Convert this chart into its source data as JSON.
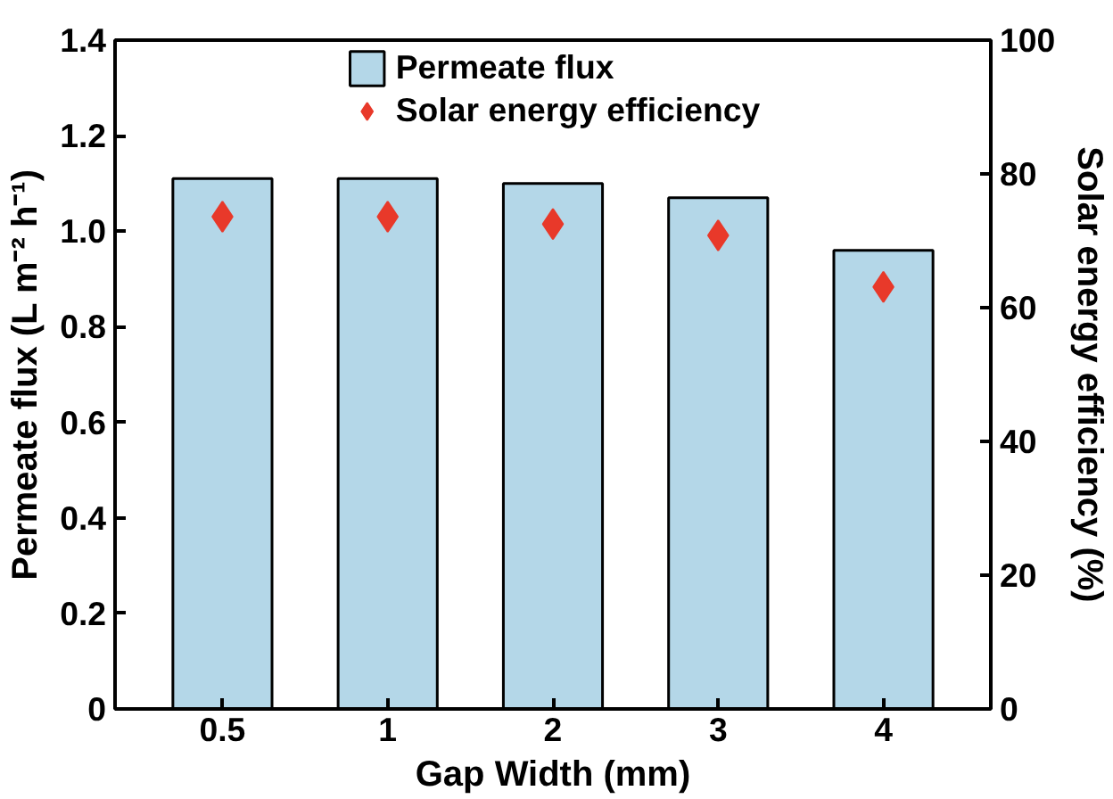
{
  "chart_data": {
    "type": "bar",
    "categories": [
      "0.5",
      "1",
      "2",
      "3",
      "4"
    ],
    "xlabel": "Gap Width (mm)",
    "ylabel": "Permeate flux (L m⁻² h⁻¹)",
    "y2label": "Solar energy efficiency (%)",
    "ylim": [
      0,
      1.4
    ],
    "yticks": [
      0,
      0.2,
      0.4,
      0.6,
      0.8,
      {
        "value": 1,
        "label": "1.0"
      },
      1.2,
      1.4
    ],
    "y2lim": [
      0,
      100
    ],
    "y2ticks": [
      0,
      20,
      40,
      60,
      80,
      100
    ],
    "series": [
      {
        "name": "Permeate flux",
        "color": "#b4d7e8",
        "values": [
          1.11,
          1.11,
          1.1,
          1.07,
          0.96
        ]
      },
      {
        "name": "Solar energy efficiency",
        "type": "scatter",
        "axis": "y2",
        "marker": "diamond",
        "color": "#e8392a",
        "values": [
          73.6,
          73.6,
          72.5,
          70.8,
          63.1
        ]
      }
    ],
    "legend": "top",
    "grid": false
  }
}
